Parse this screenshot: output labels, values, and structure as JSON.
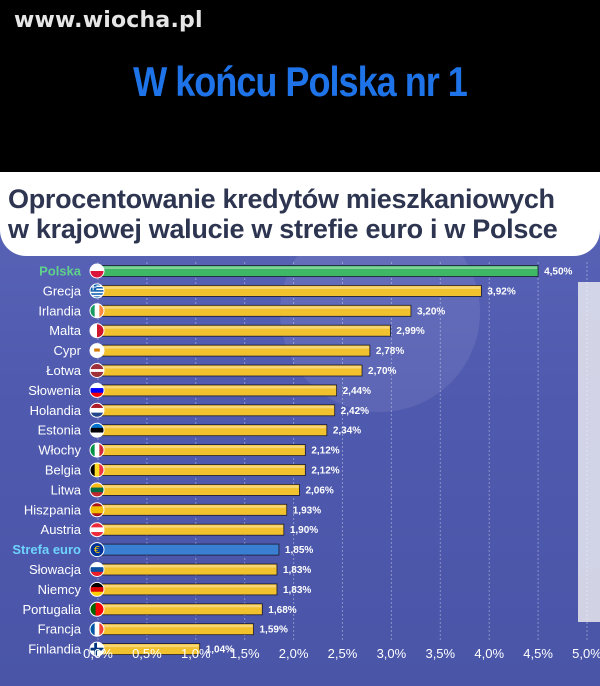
{
  "watermark": "www.wiocha.pl",
  "headline": "W końcu Polska nr 1",
  "colors": {
    "bar_default": "#f2c12e",
    "bar_highlight_green": "#3fb866",
    "bar_highlight_blue": "#3a7fd1",
    "headline": "#1e73e8"
  },
  "chart_data": {
    "type": "bar",
    "orientation": "horizontal",
    "title": "Oprocentowanie kredytów mieszkaniowych\nw krajowej walucie w strefie euro i w Polsce",
    "categories": [
      "Polska",
      "Grecja",
      "Irlandia",
      "Malta",
      "Cypr",
      "Łotwa",
      "Słowenia",
      "Holandia",
      "Estonia",
      "Włochy",
      "Belgia",
      "Litwa",
      "Hiszpania",
      "Austria",
      "Strefa euro",
      "Słowacja",
      "Niemcy",
      "Portugalia",
      "Francja",
      "Finlandia"
    ],
    "values": [
      4.5,
      3.92,
      3.2,
      2.99,
      2.78,
      2.7,
      2.44,
      2.42,
      2.34,
      2.12,
      2.12,
      2.06,
      1.93,
      1.9,
      1.85,
      1.83,
      1.83,
      1.68,
      1.59,
      1.04
    ],
    "value_labels": [
      "4,50%",
      "3,92%",
      "3,20%",
      "2,99%",
      "2,78%",
      "2,70%",
      "2,44%",
      "2,42%",
      "2,34%",
      "2,12%",
      "2,12%",
      "2,06%",
      "1,93%",
      "1,90%",
      "1,85%",
      "1,83%",
      "1,83%",
      "1,68%",
      "1,59%",
      "1,04%"
    ],
    "highlight": {
      "Polska": "green",
      "Strefa euro": "blue"
    },
    "flag_icons": [
      "poland-flag-icon",
      "greece-flag-icon",
      "ireland-flag-icon",
      "malta-flag-icon",
      "cyprus-flag-icon",
      "latvia-flag-icon",
      "slovenia-flag-icon",
      "netherlands-flag-icon",
      "estonia-flag-icon",
      "italy-flag-icon",
      "belgium-flag-icon",
      "lithuania-flag-icon",
      "spain-flag-icon",
      "austria-flag-icon",
      "euro-icon",
      "slovakia-flag-icon",
      "germany-flag-icon",
      "portugal-flag-icon",
      "france-flag-icon",
      "finland-flag-icon"
    ],
    "x_ticks": [
      "0,0%",
      "0,5%",
      "1,0%",
      "1,5%",
      "2,0%",
      "2,5%",
      "3,0%",
      "3,5%",
      "4,0%",
      "4,5%",
      "5,0%"
    ],
    "xlim": [
      0,
      5
    ],
    "grid": true
  }
}
